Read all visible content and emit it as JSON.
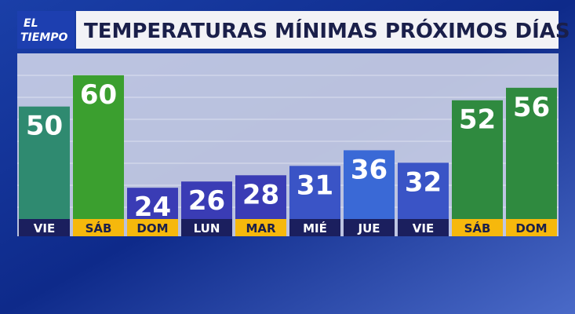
{
  "logo": {
    "line1": "EL",
    "line2": "TIEMPO"
  },
  "chart_data": {
    "type": "bar",
    "title": "TEMPERATURAS MÍNIMAS PRÓXIMOS DÍAS",
    "categories": [
      "VIE",
      "SÁB",
      "DOM",
      "LUN",
      "MAR",
      "MIÉ",
      "JUE",
      "VIE",
      "SÁB",
      "DOM"
    ],
    "values": [
      50,
      60,
      24,
      26,
      28,
      31,
      36,
      32,
      52,
      56
    ],
    "colors": [
      "#2f8a70",
      "#3b9f2f",
      "#3a3cb5",
      "#3a3cb5",
      "#3a3cb5",
      "#3a54c6",
      "#3a69d6",
      "#3a54c6",
      "#2f8a3f",
      "#2f8a3f"
    ],
    "category_colors": [
      "#1b1f5e",
      "#f6b80c",
      "#f6b80c",
      "#1b1f5e",
      "#f6b80c",
      "#1b1f5e",
      "#1b1f5e",
      "#1b1f5e",
      "#f6b80c",
      "#f6b80c"
    ],
    "ylim": [
      14,
      65
    ]
  }
}
